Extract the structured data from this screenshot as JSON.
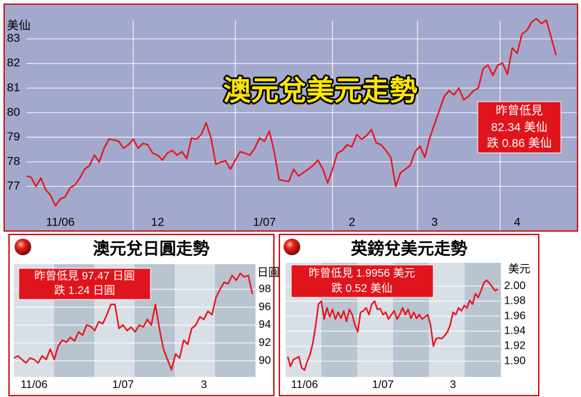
{
  "chart_data": [
    {
      "type": "line",
      "title": "澳元兌美元走勢",
      "ylabel": "美仙",
      "annotation": [
        "昨曾低見",
        "82.34 美仙",
        "跌 0.86 美仙"
      ],
      "categories": [
        null,
        null,
        null,
        null,
        null,
        null,
        null,
        "11/06",
        null,
        null,
        null,
        null,
        null,
        null,
        null,
        null,
        null,
        null,
        null,
        null,
        null,
        null,
        null,
        null,
        null,
        null,
        null,
        "12",
        null,
        null,
        null,
        null,
        null,
        null,
        null,
        null,
        null,
        null,
        null,
        null,
        null,
        null,
        null,
        null,
        null,
        null,
        null,
        null,
        null,
        "1/07",
        null,
        null,
        null,
        null,
        null,
        null,
        null,
        null,
        null,
        null,
        null,
        null,
        null,
        null,
        null,
        null,
        null,
        "2",
        null,
        null,
        null,
        null,
        null,
        null,
        null,
        null,
        null,
        null,
        null,
        null,
        null,
        null,
        null,
        null,
        "3",
        null,
        null,
        null,
        null,
        null,
        null,
        null,
        null,
        null,
        null,
        null,
        null,
        null,
        null,
        null,
        null,
        "4",
        null,
        null,
        null,
        null,
        null,
        null,
        null,
        null
      ],
      "series": [
        {
          "color": "#e8141c",
          "values": [
            77.42,
            77.37,
            77.0,
            77.34,
            76.86,
            76.63,
            76.21,
            76.49,
            76.58,
            76.94,
            77.06,
            77.34,
            77.7,
            77.85,
            78.27,
            77.99,
            78.55,
            78.92,
            78.89,
            78.83,
            78.55,
            78.69,
            78.92,
            78.55,
            78.75,
            78.69,
            78.35,
            78.27,
            78.07,
            78.35,
            78.46,
            78.27,
            78.41,
            78.13,
            78.97,
            78.92,
            79.11,
            79.59,
            78.97,
            77.9,
            77.99,
            78.04,
            77.7,
            78.07,
            78.41,
            78.35,
            78.27,
            78.55,
            78.97,
            78.83,
            79.25,
            78.41,
            77.28,
            77.23,
            77.2,
            77.7,
            77.42,
            77.56,
            77.7,
            77.85,
            78.07,
            77.7,
            77.14,
            77.7,
            78.35,
            78.46,
            78.69,
            78.61,
            79.11,
            78.92,
            79.06,
            79.31,
            78.77,
            78.69,
            78.46,
            78.18,
            77.0,
            77.56,
            77.7,
            77.85,
            78.41,
            78.63,
            78.18,
            78.97,
            79.54,
            80.1,
            80.66,
            80.89,
            80.72,
            81.0,
            80.52,
            80.66,
            80.89,
            81.0,
            81.79,
            81.93,
            81.51,
            81.93,
            82.01,
            81.56,
            82.63,
            82.41,
            83.2,
            83.34,
            83.7,
            83.82,
            83.62,
            83.76,
            83.06,
            82.34
          ]
        }
      ],
      "ylim": [
        76,
        84.3
      ],
      "yticks": [
        77,
        78,
        79,
        80,
        81,
        82,
        83
      ],
      "grid": true
    },
    {
      "type": "line",
      "title": "澳元兌日圓走勢",
      "ylabel": "日圓",
      "annotation": [
        "昨曾低見 97.47 日圓",
        "跌 1.24 日圓"
      ],
      "categories": [
        null,
        null,
        null,
        null,
        null,
        "11/06",
        null,
        null,
        null,
        null,
        null,
        null,
        null,
        null,
        null,
        null,
        null,
        null,
        null,
        null,
        null,
        null,
        null,
        null,
        null,
        null,
        null,
        "1/07",
        null,
        null,
        null,
        null,
        null,
        null,
        null,
        null,
        null,
        null,
        null,
        null,
        null,
        null,
        null,
        null,
        null,
        null,
        null,
        "3",
        null,
        null,
        null,
        null,
        null,
        null,
        null,
        null,
        null,
        null,
        null,
        null
      ],
      "series": [
        {
          "color": "#e8141c",
          "values": [
            90.31,
            90.54,
            90.15,
            89.77,
            90.31,
            90.15,
            89.77,
            90.54,
            90.15,
            91.31,
            90.15,
            91.69,
            92.31,
            92.08,
            92.62,
            92.23,
            93.23,
            92.85,
            94.0,
            93.85,
            93.38,
            94.38,
            94.15,
            95.15,
            96.31,
            96.31,
            93.62,
            94.0,
            93.38,
            93.77,
            93.23,
            94.0,
            93.77,
            94.62,
            94.0,
            96.31,
            93.62,
            91.31,
            90.15,
            89.0,
            90.77,
            90.31,
            92.31,
            91.85,
            93.62,
            94.0,
            94.92,
            94.62,
            95.54,
            95.15,
            97.08,
            98.0,
            98.77,
            98.62,
            99.54,
            99.0,
            99.77,
            99.38,
            99.54,
            97.47
          ]
        }
      ],
      "ylim": [
        88.2,
        100.8
      ],
      "yticks": [
        90,
        92,
        94,
        96,
        98
      ],
      "grid": true
    },
    {
      "type": "line",
      "title": "英鎊兌美元走勢",
      "ylabel": "美元",
      "annotation": [
        "昨曾低見 1.9956 美元",
        "跌 0.52 美仙"
      ],
      "categories": [
        null,
        null,
        null,
        null,
        null,
        null,
        "11/06",
        null,
        null,
        null,
        null,
        null,
        null,
        null,
        null,
        null,
        null,
        null,
        null,
        null,
        null,
        null,
        null,
        null,
        null,
        null,
        null,
        null,
        null,
        null,
        null,
        null,
        null,
        null,
        "1/07",
        null,
        null,
        null,
        null,
        null,
        null,
        null,
        null,
        null,
        null,
        null,
        null,
        null,
        null,
        null,
        null,
        null,
        null,
        null,
        null,
        null,
        null,
        null,
        null,
        "3",
        null,
        null,
        null,
        null,
        null,
        null,
        null,
        null,
        null,
        null,
        null,
        null,
        null,
        null,
        null,
        null
      ],
      "series": [
        {
          "color": "#e8141c",
          "values": [
            1.906,
            1.893,
            1.902,
            1.904,
            1.906,
            1.891,
            1.888,
            1.9,
            1.909,
            1.925,
            1.948,
            1.976,
            1.98,
            1.956,
            1.971,
            1.959,
            1.969,
            1.956,
            1.965,
            1.957,
            1.967,
            1.953,
            1.969,
            1.962,
            1.948,
            1.939,
            1.965,
            1.967,
            1.971,
            1.962,
            1.976,
            1.98,
            1.969,
            1.97,
            1.962,
            1.965,
            1.956,
            1.962,
            1.967,
            1.956,
            1.962,
            1.971,
            1.962,
            1.969,
            1.957,
            1.965,
            1.957,
            1.962,
            1.956,
            1.959,
            1.962,
            1.948,
            1.92,
            1.93,
            1.931,
            1.93,
            1.934,
            1.939,
            1.948,
            1.965,
            1.962,
            1.971,
            1.967,
            1.974,
            1.971,
            1.981,
            1.976,
            1.99,
            1.985,
            1.994,
            2.004,
            2.008,
            2.004,
            1.999,
            1.994,
            1.996
          ]
        }
      ],
      "ylim": [
        1.879,
        2.031
      ],
      "yticks": [
        {
          "value": 1.9,
          "label": "1.90"
        },
        1.92,
        1.94,
        1.96,
        1.98,
        {
          "value": 2,
          "label": "2.00"
        }
      ],
      "grid": true
    }
  ]
}
